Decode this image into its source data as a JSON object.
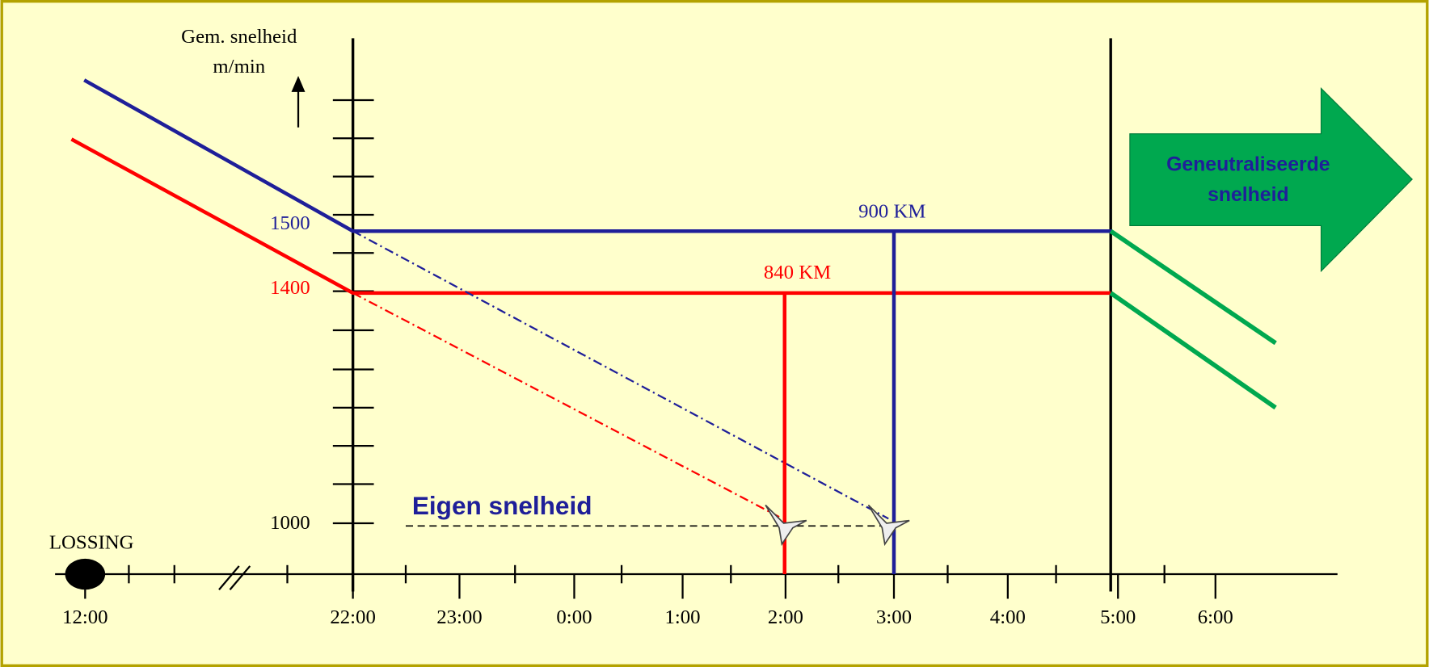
{
  "axis_label": {
    "line1": "Gem. snelheid",
    "line2": "m/min"
  },
  "y_labels": [
    "1500",
    "1400",
    "1000"
  ],
  "x_labels": [
    "12:00",
    "22:00",
    "23:00",
    "0:00",
    "1:00",
    "2:00",
    "3:00",
    "4:00",
    "5:00",
    "6:00"
  ],
  "start_label": "LOSSING",
  "distance_labels": {
    "blue": "900 KM",
    "red": "840 KM"
  },
  "own_speed": "Eigen snelheid",
  "arrow": {
    "line1": "Geneutraliseerde",
    "line2": "snelheid"
  }
}
